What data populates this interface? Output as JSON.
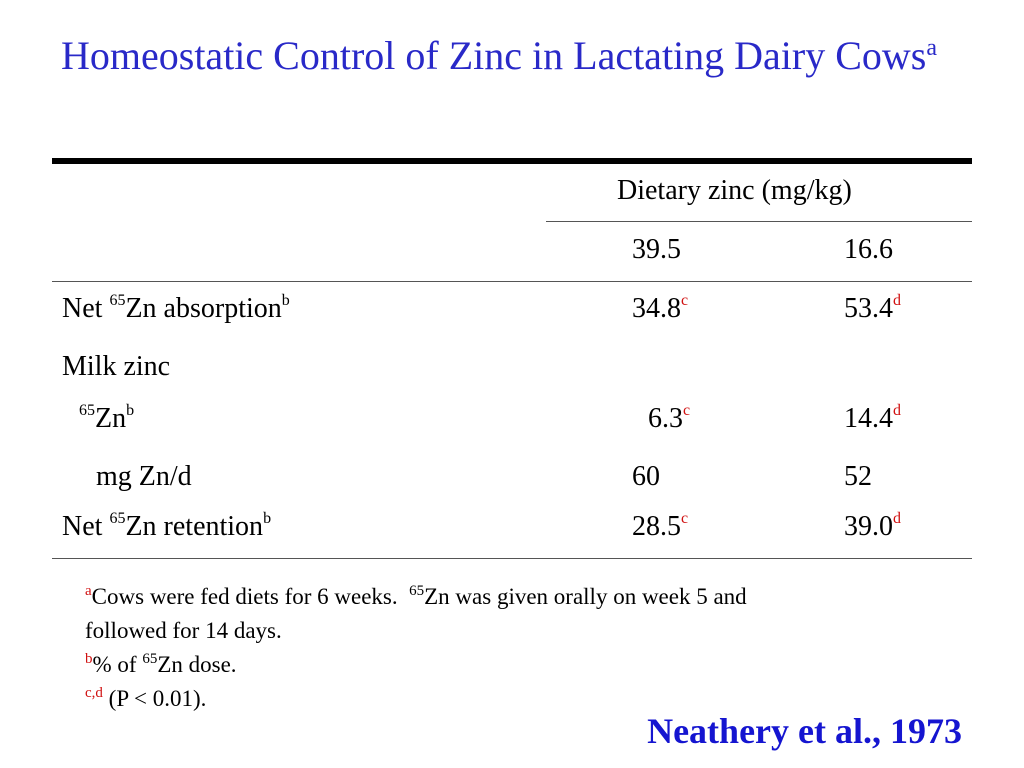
{
  "title": {
    "text": "Homeostatic Control of Zinc in Lactating Dairy Cows",
    "sup": "a"
  },
  "table": {
    "group_header": "Dietary zinc (mg/kg)",
    "columns": [
      "39.5",
      "16.6"
    ],
    "rows": {
      "net_abs": {
        "label_pre": "Net ",
        "label_iso": "65",
        "label_main": "Zn absorption",
        "label_sup": "b",
        "v1": "34.8",
        "v1_sup": "c",
        "v2": "53.4",
        "v2_sup": "d"
      },
      "milk_zinc": {
        "label": "Milk zinc"
      },
      "zn65": {
        "label_iso": "65",
        "label_main": "Zn",
        "label_sup": "b",
        "v1": "6.3",
        "v1_sup": "c",
        "v2": "14.4",
        "v2_sup": "d"
      },
      "mg_zn": {
        "label": "mg Zn/d",
        "v1": "60",
        "v2": "52"
      },
      "net_ret": {
        "label_pre": "Net ",
        "label_iso": "65",
        "label_main": "Zn retention",
        "label_sup": "b",
        "v1": "28.5",
        "v1_sup": "c",
        "v2": "39.0",
        "v2_sup": "d"
      }
    }
  },
  "footnotes": {
    "a": {
      "mark": "a",
      "text1": "Cows were fed diets for 6 weeks.  ",
      "iso": "65",
      "text2": "Zn was given orally on week 5 and",
      "text3": "followed for 14 days."
    },
    "b": {
      "mark": "b",
      "text1": "% of ",
      "iso": "65",
      "text2": "Zn dose."
    },
    "cd": {
      "mark": "c,d",
      "text": " (P < 0.01)."
    }
  },
  "citation": "Neathery et al., 1973",
  "colors": {
    "title": "#2929c8",
    "citation": "#1515d0",
    "superscript_marks": "#d01010"
  }
}
